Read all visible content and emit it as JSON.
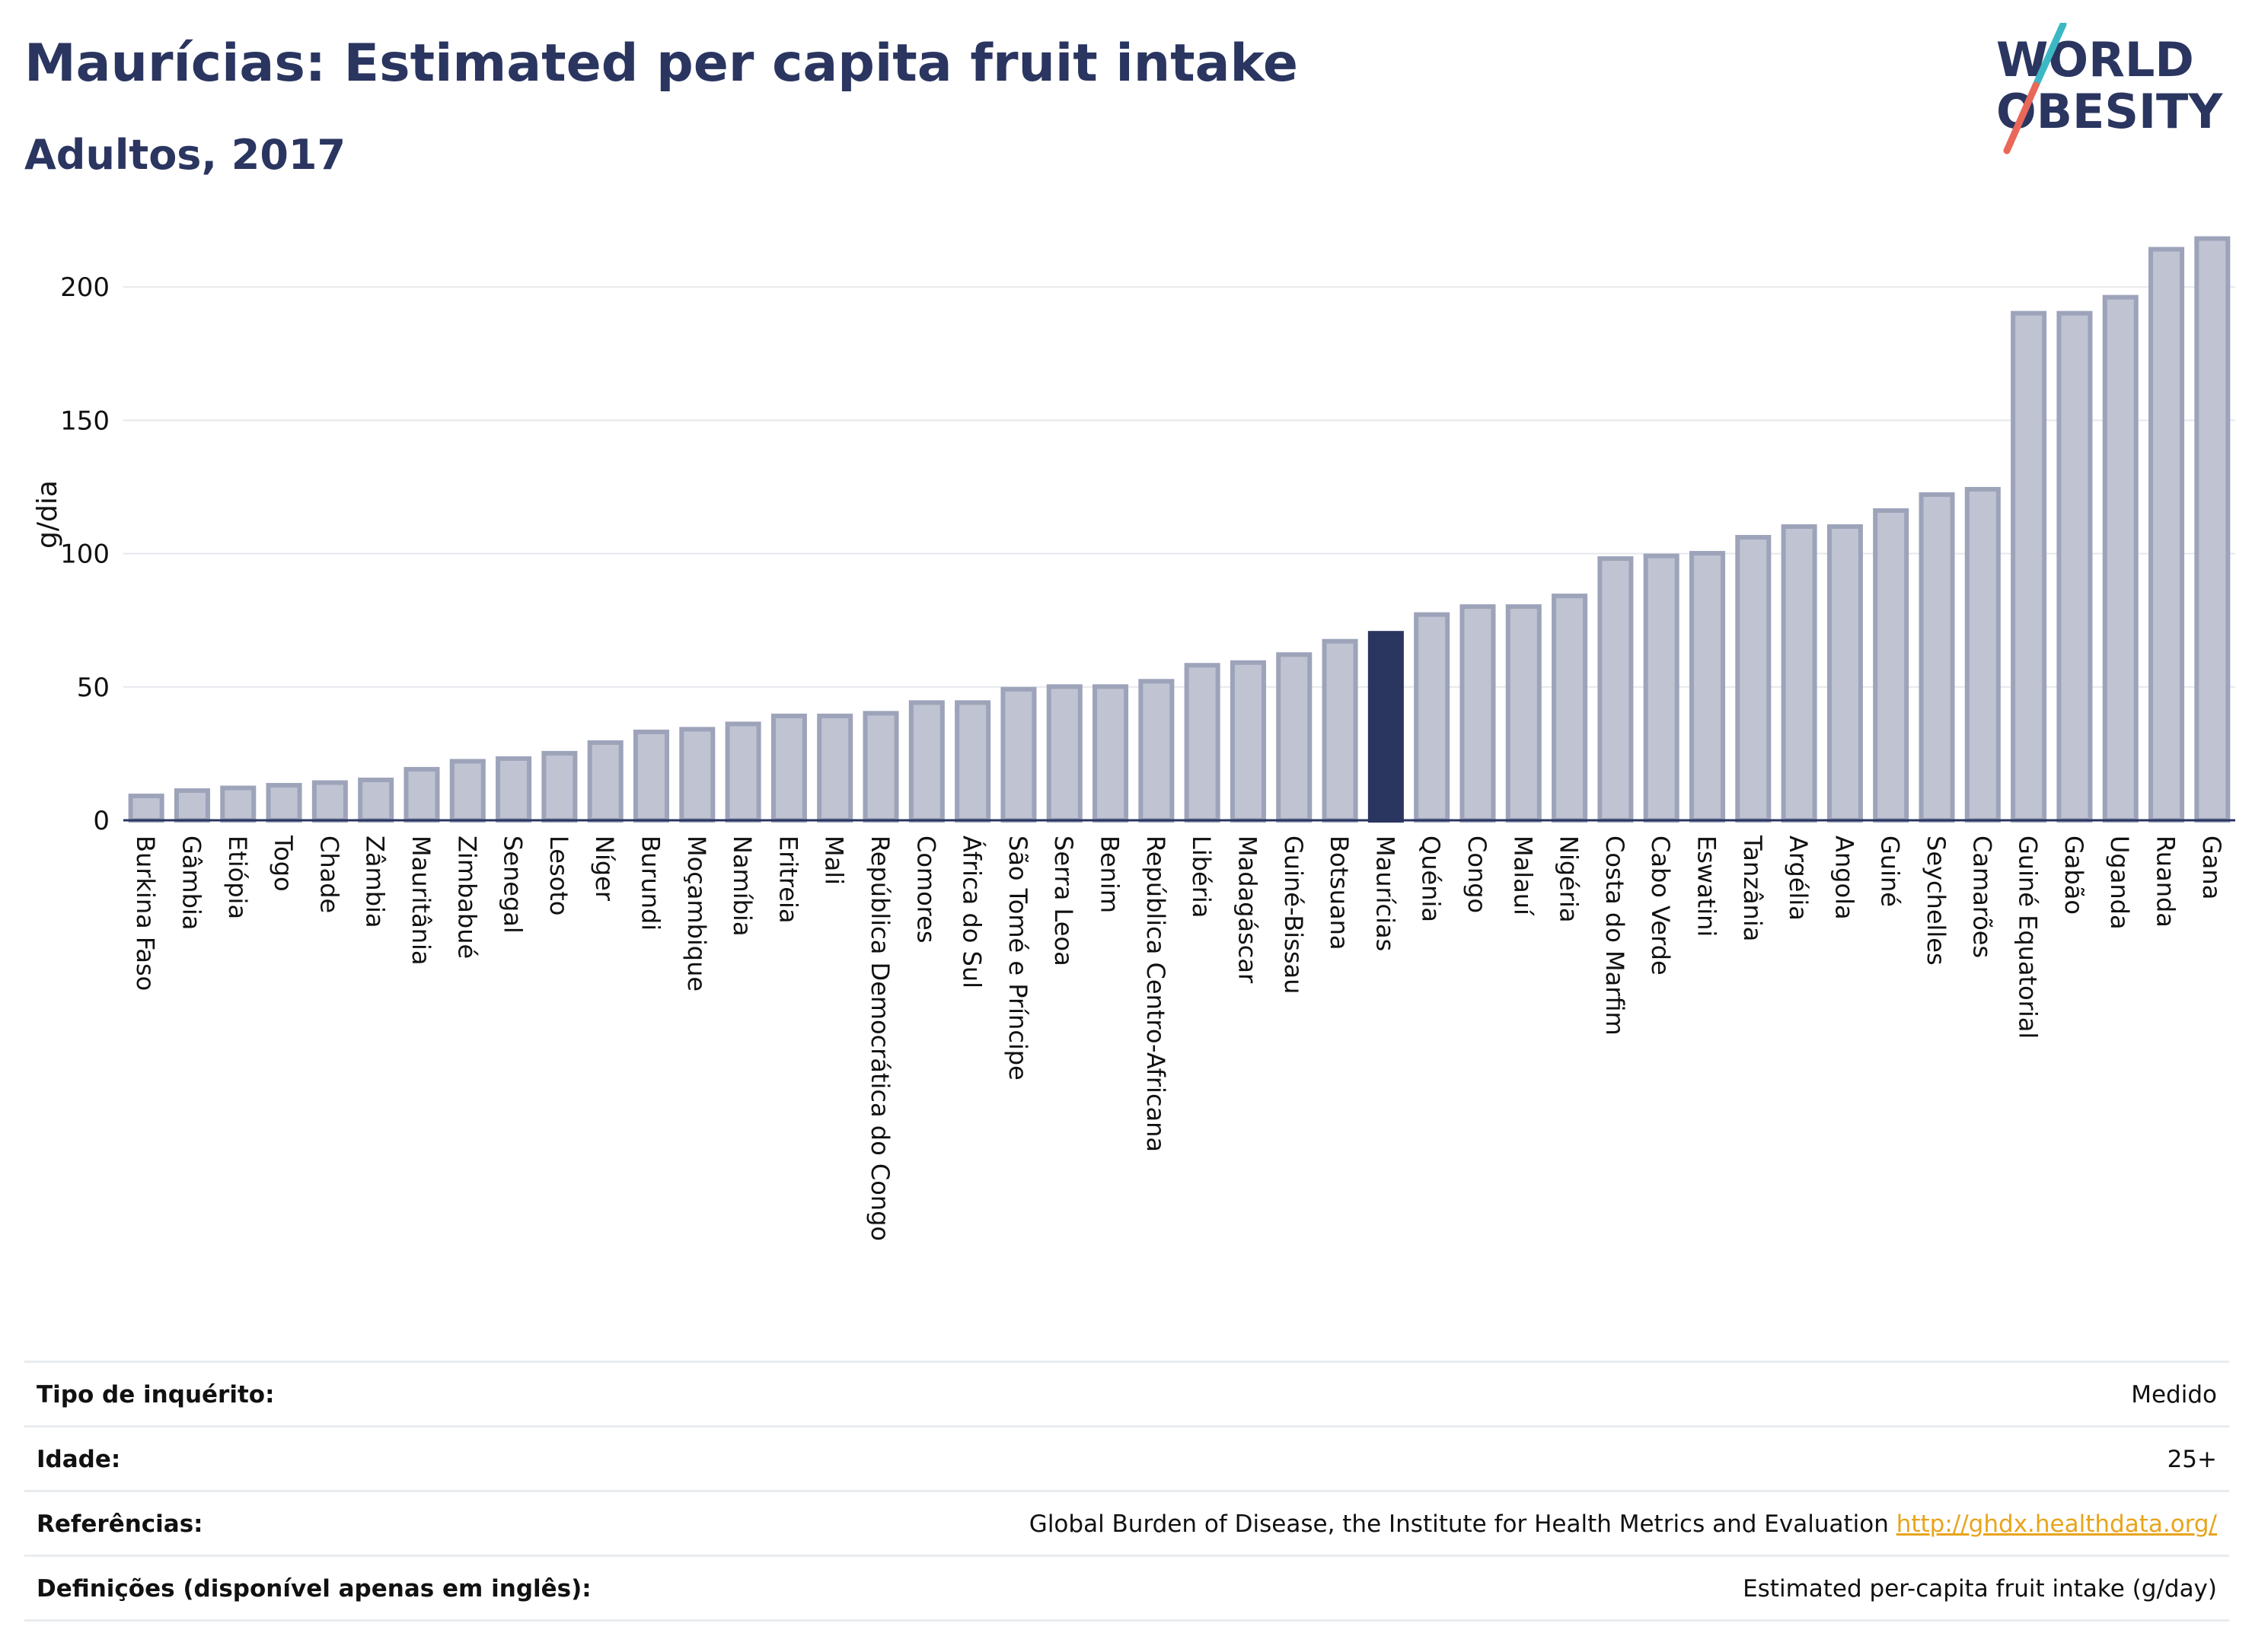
{
  "header": {
    "title": "Maurícias: Estimated per capita fruit intake",
    "subtitle": "Adultos, 2017",
    "logo_line1": "WORLD",
    "logo_line2": "OBESITY"
  },
  "colors": {
    "bar_fill": "#bfc3d2",
    "bar_stroke": "#9da3b9",
    "highlight": "#2a3560",
    "text": "#2a3560",
    "grid": "#e6e8ec",
    "logo_teal": "#3bb8c3",
    "logo_coral": "#e8685a",
    "link": "#e8a41c"
  },
  "chart_data": {
    "type": "bar",
    "ylabel": "g/dia",
    "ylim": [
      0,
      222
    ],
    "yticks": [
      0,
      50,
      100,
      150,
      200
    ],
    "grid": true,
    "highlight": "Maurícias",
    "categories": [
      "Burkina Faso",
      "Gâmbia",
      "Etiópia",
      "Togo",
      "Chade",
      "Zâmbia",
      "Mauritânia",
      "Zimbabué",
      "Senegal",
      "Lesoto",
      "Níger",
      "Burundi",
      "Moçambique",
      "Namíbia",
      "Eritreia",
      "Mali",
      "República Democrática do Congo",
      "Comores",
      "África do Sul",
      "São Tomé e Príncipe",
      "Serra Leoa",
      "Benim",
      "República Centro-Africana",
      "Libéria",
      "Madagáscar",
      "Guiné-Bissau",
      "Botsuana",
      "Maurícias",
      "Quénia",
      "Congo",
      "Malauí",
      "Nigéria",
      "Costa do Marfim",
      "Cabo Verde",
      "Eswatini",
      "Tanzânia",
      "Argélia",
      "Angola",
      "Guiné",
      "Seychelles",
      "Camarões",
      "Guiné Equatorial",
      "Gabão",
      "Uganda",
      "Ruanda",
      "Gana"
    ],
    "values": [
      10,
      12,
      13,
      14,
      15,
      16,
      20,
      23,
      24,
      26,
      30,
      34,
      35,
      37,
      40,
      40,
      41,
      45,
      45,
      50,
      51,
      51,
      53,
      59,
      60,
      63,
      68,
      71,
      78,
      81,
      81,
      85,
      99,
      100,
      101,
      107,
      111,
      111,
      117,
      123,
      125,
      191,
      191,
      197,
      215,
      219
    ]
  },
  "info": {
    "rows": [
      {
        "label": "Tipo de inquérito:",
        "value": "Medido"
      },
      {
        "label": "Idade:",
        "value": "25+"
      },
      {
        "label": "Referências:",
        "value": "Global Burden of Disease, the Institute for Health Metrics and Evaluation",
        "link": "http://ghdx.healthdata.org/"
      },
      {
        "label": "Definições (disponível apenas em inglês):",
        "value": "Estimated per-capita fruit intake (g/day)"
      }
    ]
  }
}
